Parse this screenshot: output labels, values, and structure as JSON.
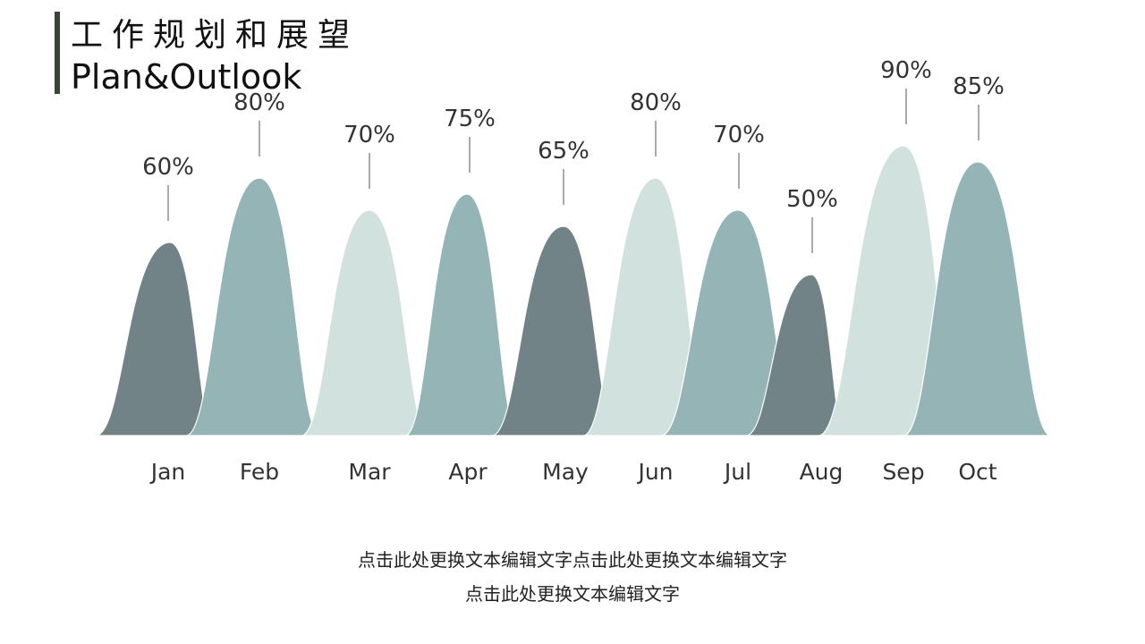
{
  "header": {
    "title_cn": "工作规划和展望",
    "title_en": "Plan&Outlook"
  },
  "chart_data": {
    "type": "area",
    "categories": [
      "Jan",
      "Feb",
      "Mar",
      "Apr",
      "May",
      "Jun",
      "Jul",
      "Aug",
      "Sep",
      "Oct"
    ],
    "values": [
      60,
      80,
      70,
      75,
      65,
      80,
      70,
      50,
      90,
      85
    ],
    "value_labels": [
      "60%",
      "80%",
      "70%",
      "75%",
      "65%",
      "80%",
      "70%",
      "50%",
      "90%",
      "85%"
    ],
    "title": "",
    "xlabel": "",
    "ylabel": "",
    "legend": "none",
    "grid": false,
    "colors": [
      "#728387",
      "#94b4b6",
      "#d1e1de",
      "#94b4b6",
      "#728387",
      "#d1e1de",
      "#94b4b6",
      "#728387",
      "#d1e1de",
      "#94b4b6"
    ]
  },
  "captions": {
    "line1": "点击此处更换文本编辑文字点击此处更换文本编辑文字",
    "line2": "点击此处更换文本编辑文字"
  }
}
